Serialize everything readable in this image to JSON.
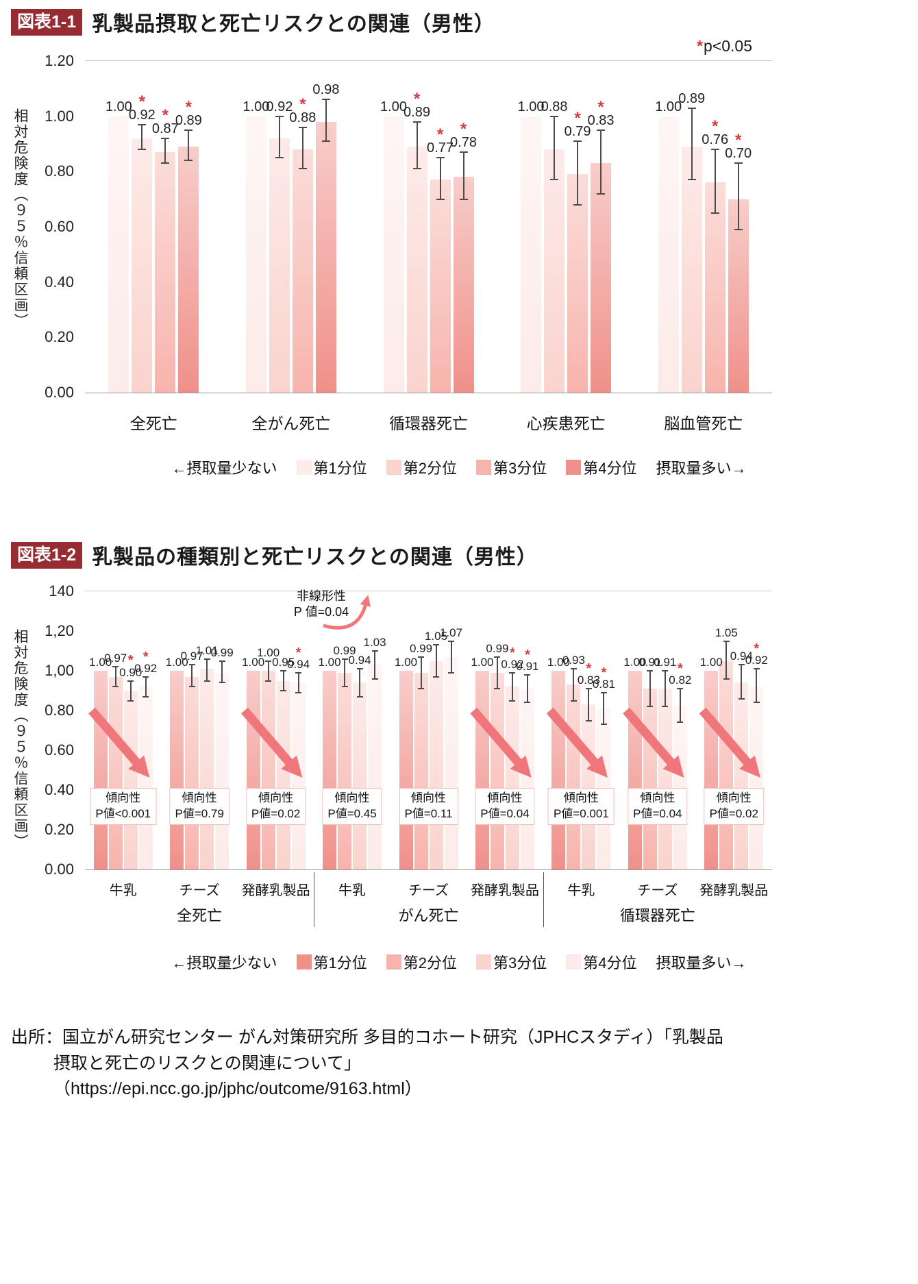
{
  "figure1": {
    "badge": "図表1-1",
    "title": "乳製品摂取と死亡リスクとの関連（男性）",
    "note_star": "*",
    "note_text": "p<0.05"
  },
  "figure2": {
    "badge": "図表1-2",
    "title": "乳製品の種類別と死亡リスクとの関連（男性）"
  },
  "legend": {
    "left": "←摂取量少ない",
    "right": "摂取量多い→"
  },
  "symbols": {
    "star": "*"
  },
  "colors": {
    "badge_bg": "#962b31",
    "accent_red": "#d93a40",
    "trend_arrow": "#ef767b",
    "quartile_palette_light_to_dark": [
      "#fcebe8",
      "#fad3cd",
      "#f7b4ac",
      "#f0908a"
    ]
  },
  "source": {
    "line1": "出所：国立がん研究センター がん対策研究所 多目的コホート研究（JPHCスタディ）「乳製品",
    "line2": "摂取と死亡のリスクとの関連について」",
    "line3": "（https://epi.ncc.go.jp/jphc/outcome/9163.html）"
  },
  "chart_data": [
    {
      "id": "figure-1-1",
      "type": "bar",
      "title": "乳製品摂取と死亡リスクとの関連（男性）",
      "note": "*p<0.05",
      "ylabel": "相対危険度（９５％信頼区画）",
      "ylim": [
        0,
        1.2
      ],
      "grid": false,
      "legend_position": "bottom",
      "yticks": [
        {
          "value": 1.2,
          "label": "1.20"
        },
        {
          "value": 1.0,
          "label": "1.00"
        },
        {
          "value": 0.8,
          "label": "0.80"
        },
        {
          "value": 0.6,
          "label": "0.60"
        },
        {
          "value": 0.4,
          "label": "0.40"
        },
        {
          "value": 0.2,
          "label": "0.20"
        },
        {
          "value": 0.0,
          "label": "0.00"
        }
      ],
      "categories": [
        "全死亡",
        "全がん死亡",
        "循環器死亡",
        "心疾患死亡",
        "脳血管死亡"
      ],
      "series": [
        {
          "name": "第1分位",
          "values": [
            1.0,
            1.0,
            1.0,
            1.0,
            1.0
          ],
          "labels": [
            "1.00",
            "1.00",
            "1.00",
            "1.00",
            "1.00"
          ]
        },
        {
          "name": "第2分位",
          "values": [
            0.92,
            0.92,
            0.89,
            0.88,
            0.89
          ],
          "labels": [
            "0.92",
            "0.92",
            "0.89",
            "0.88",
            "0.89"
          ],
          "ci_low": [
            0.88,
            0.85,
            0.81,
            0.77,
            0.77
          ],
          "ci_high": [
            0.97,
            1.0,
            0.98,
            1.0,
            1.03
          ],
          "sig": [
            true,
            false,
            true,
            false,
            false
          ]
        },
        {
          "name": "第3分位",
          "values": [
            0.87,
            0.88,
            0.77,
            0.79,
            0.76
          ],
          "labels": [
            "0.87",
            "0.88",
            "0.77",
            "0.79",
            "0.76"
          ],
          "ci_low": [
            0.83,
            0.81,
            0.7,
            0.68,
            0.65
          ],
          "ci_high": [
            0.92,
            0.96,
            0.85,
            0.91,
            0.88
          ],
          "sig": [
            true,
            true,
            true,
            true,
            true
          ]
        },
        {
          "name": "第4分位",
          "values": [
            0.89,
            0.98,
            0.78,
            0.83,
            0.7
          ],
          "labels": [
            "0.89",
            "0.98",
            "0.78",
            "0.83",
            "0.70"
          ],
          "ci_low": [
            0.84,
            0.91,
            0.7,
            0.72,
            0.59
          ],
          "ci_high": [
            0.95,
            1.06,
            0.87,
            0.95,
            0.83
          ],
          "sig": [
            true,
            false,
            true,
            true,
            true
          ]
        }
      ]
    },
    {
      "id": "figure-1-2",
      "type": "bar",
      "title": "乳製品の種類別と死亡リスクとの関連（男性）",
      "ylabel": "相対危険度（９５％信頼区画）",
      "ylim": [
        0,
        1.4
      ],
      "grid": false,
      "legend_position": "bottom",
      "yticks": [
        {
          "value": 1.4,
          "label": "140"
        },
        {
          "value": 1.2,
          "label": "1,20"
        },
        {
          "value": 1.0,
          "label": "1,00"
        },
        {
          "value": 0.8,
          "label": "0.80"
        },
        {
          "value": 0.6,
          "label": "0.60"
        },
        {
          "value": 0.4,
          "label": "0.40"
        },
        {
          "value": 0.2,
          "label": "0.20"
        },
        {
          "value": 0.0,
          "label": "0.00"
        }
      ],
      "categories": [
        "牛乳",
        "チーズ",
        "発酵乳製品",
        "牛乳",
        "チーズ",
        "発酵乳製品",
        "牛乳",
        "チーズ",
        "発酵乳製品"
      ],
      "super_categories": [
        {
          "label": "全死亡",
          "start": 0,
          "end": 2
        },
        {
          "label": "がん死亡",
          "start": 3,
          "end": 5
        },
        {
          "label": "循環器死亡",
          "start": 6,
          "end": 8
        }
      ],
      "series": [
        {
          "name": "第1分位",
          "values": [
            1.0,
            1.0,
            1.0,
            1.0,
            1.0,
            1.0,
            1.0,
            1.0,
            1.0
          ],
          "labels": [
            "1.00",
            "1.00",
            "1.00",
            "1.00",
            "1.00",
            "1.00",
            "1.00",
            "1.00",
            "1.00"
          ]
        },
        {
          "name": "第2分位",
          "values": [
            0.97,
            0.97,
            1.0,
            0.99,
            0.99,
            0.99,
            0.93,
            0.91,
            1.05
          ],
          "labels": [
            "0.97",
            "0.97",
            "1.00",
            "0.99",
            "0.99",
            "0.99",
            "0.93",
            "0.91",
            "1.05"
          ],
          "ci_low": [
            0.92,
            0.92,
            0.95,
            0.92,
            0.91,
            0.91,
            0.85,
            0.82,
            0.96
          ],
          "ci_high": [
            1.02,
            1.03,
            1.05,
            1.06,
            1.07,
            1.07,
            1.01,
            1.0,
            1.15
          ],
          "sig": [
            false,
            false,
            false,
            false,
            false,
            false,
            false,
            false,
            false
          ]
        },
        {
          "name": "第3分位",
          "values": [
            0.9,
            1.01,
            0.95,
            0.94,
            1.05,
            0.92,
            0.83,
            0.91,
            0.94
          ],
          "labels": [
            "0.90",
            "1.01",
            "0.95",
            "0.94",
            "1.05",
            "0.92",
            "0.83",
            "0.91",
            "0.94"
          ],
          "ci_low": [
            0.85,
            0.95,
            0.9,
            0.87,
            0.97,
            0.85,
            0.75,
            0.82,
            0.86
          ],
          "ci_high": [
            0.95,
            1.06,
            1.0,
            1.01,
            1.13,
            0.99,
            0.91,
            1.0,
            1.03
          ],
          "sig": [
            true,
            false,
            false,
            false,
            false,
            true,
            true,
            false,
            false
          ]
        },
        {
          "name": "第4分位",
          "values": [
            0.92,
            0.99,
            0.94,
            1.03,
            1.07,
            0.91,
            0.81,
            0.82,
            0.92
          ],
          "labels": [
            "0.92",
            "0.99",
            "0.94",
            "1.03",
            "1.07",
            "0.91",
            "0.81",
            "0.82",
            "0.92"
          ],
          "ci_low": [
            0.87,
            0.94,
            0.89,
            0.96,
            0.99,
            0.84,
            0.73,
            0.74,
            0.84
          ],
          "ci_high": [
            0.97,
            1.05,
            0.99,
            1.1,
            1.15,
            0.98,
            0.89,
            0.91,
            1.01
          ],
          "sig": [
            true,
            false,
            true,
            false,
            false,
            true,
            true,
            true,
            true
          ]
        }
      ],
      "trend_boxes": [
        {
          "line1": "傾向性",
          "line2": "P値<0.001",
          "arrow": true
        },
        {
          "line1": "傾向性",
          "line2": "P値=0.79",
          "arrow": false
        },
        {
          "line1": "傾向性",
          "line2": "P値=0.02",
          "arrow": true
        },
        {
          "line1": "傾向性",
          "line2": "P値=0.45",
          "arrow": false
        },
        {
          "line1": "傾向性",
          "line2": "P値=0.11",
          "arrow": false
        },
        {
          "line1": "傾向性",
          "line2": "P値=0.04",
          "arrow": true
        },
        {
          "line1": "傾向性",
          "line2": "P値=0.001",
          "arrow": true
        },
        {
          "line1": "傾向性",
          "line2": "P値=0.04",
          "arrow": true
        },
        {
          "line1": "傾向性",
          "line2": "P値=0.02",
          "arrow": true
        }
      ],
      "nonlinearity": {
        "line1": "非線形性",
        "line2": "P 値=0.04",
        "target_category_index": 3
      }
    }
  ]
}
